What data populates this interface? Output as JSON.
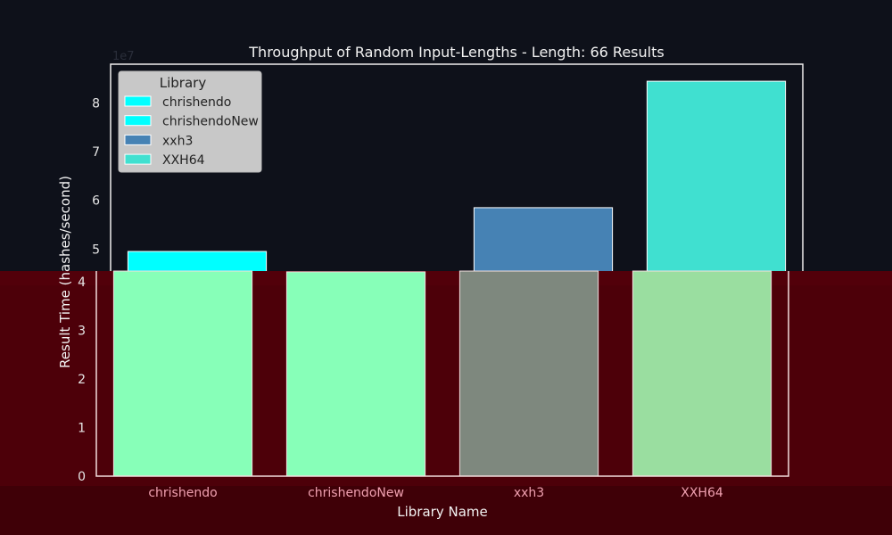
{
  "chart_data": {
    "type": "bar",
    "title": "Throughput of Random Input-Lengths - Length: 66 Results",
    "xlabel": "Library Name",
    "ylabel": "Result Time (hashes/second)",
    "y_scale_label": "1e7",
    "categories": [
      "chrishendo",
      "chrishendoNew",
      "xxh3",
      "XXH64"
    ],
    "values": [
      49500000,
      42000000,
      58500000,
      84500000
    ],
    "colors": [
      "#00ffff",
      "#00ffff",
      "#4682b4",
      "#40e0d0"
    ],
    "ylim": [
      0,
      88000000
    ],
    "yticks": [
      0,
      10000000,
      20000000,
      30000000,
      40000000,
      50000000,
      60000000,
      70000000,
      80000000
    ],
    "ytick_labels": [
      "0",
      "1",
      "2",
      "3",
      "4",
      "5",
      "6",
      "7",
      "8"
    ],
    "grid": false,
    "legend": {
      "title": "Library",
      "placement": "top-left",
      "entries": [
        {
          "label": "chrishendo",
          "color": "#00ffff"
        },
        {
          "label": "chrishendoNew",
          "color": "#00ffff"
        },
        {
          "label": "xxh3",
          "color": "#4682b4"
        },
        {
          "label": "XXH64",
          "color": "#40e0d0"
        }
      ]
    }
  }
}
